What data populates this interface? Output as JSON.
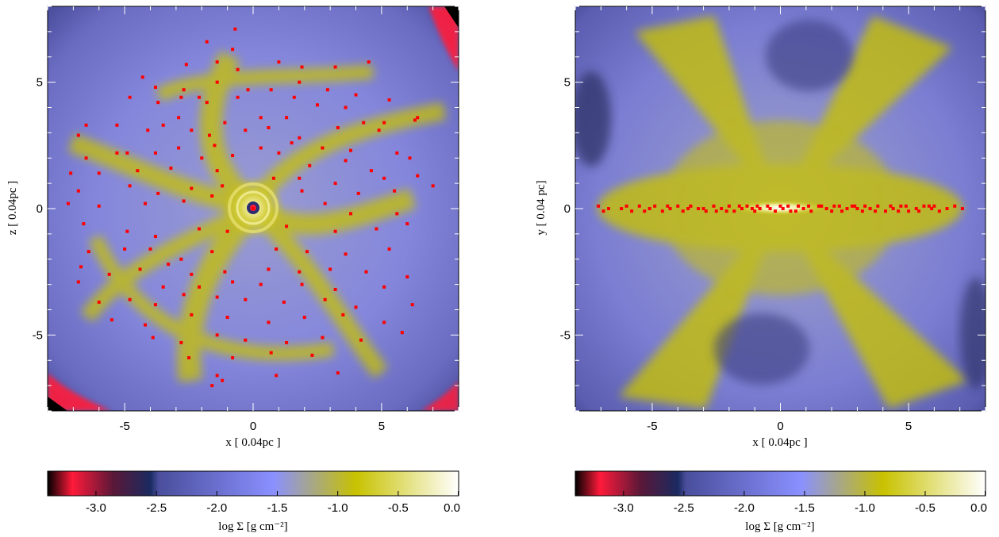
{
  "chart_data": [
    {
      "type": "heatmap",
      "panel": "left",
      "xlabel": "x [ 0.04pc ]",
      "ylabel": "z [ 0.04pc ]",
      "xlim": [
        -8,
        8
      ],
      "ylim": [
        -8,
        8
      ],
      "x_ticks": [
        "-5",
        "0",
        "5"
      ],
      "y_ticks": [
        "-5",
        "0",
        "5"
      ],
      "x_tick_values": [
        -5,
        0,
        5
      ],
      "y_tick_values": [
        -5,
        0,
        5
      ],
      "colorbar": {
        "label": "log Σ [g cm⁻²]",
        "range": [
          -3.4,
          0.0
        ],
        "ticks": [
          "-3.0",
          "-2.5",
          "-2.0",
          "-1.5",
          "-1.0",
          "-0.5",
          "0.0"
        ],
        "tick_values": [
          -3.0,
          -2.5,
          -2.0,
          -1.5,
          -1.0,
          -0.5,
          0.0
        ]
      },
      "colormap": [
        "#000000",
        "#ff1a3a",
        "#1a2a60",
        "#5a5fb0",
        "#8a90ff",
        "#c8c200",
        "#ffffff"
      ],
      "marker_color": "#ff0000",
      "points": [
        [
          0,
          0
        ],
        [
          -1.8,
          6.6
        ],
        [
          -0.7,
          7.1
        ],
        [
          -0.8,
          6.3
        ],
        [
          -1.4,
          5.8
        ],
        [
          -2.6,
          5.7
        ],
        [
          -0.6,
          5.5
        ],
        [
          -4.3,
          5.2
        ],
        [
          1.0,
          5.8
        ],
        [
          1.9,
          5.6
        ],
        [
          3.2,
          5.6
        ],
        [
          4.5,
          5.8
        ],
        [
          1.8,
          5.0
        ],
        [
          -3.8,
          4.8
        ],
        [
          -2.7,
          4.7
        ],
        [
          -2.1,
          4.4
        ],
        [
          -0.2,
          4.7
        ],
        [
          -1.4,
          5.0
        ],
        [
          0.7,
          4.7
        ],
        [
          -4.8,
          4.4
        ],
        [
          -3.7,
          4.2
        ],
        [
          -2.8,
          4.4
        ],
        [
          -1.8,
          4.2
        ],
        [
          -0.6,
          4.4
        ],
        [
          1.6,
          4.4
        ],
        [
          2.9,
          4.7
        ],
        [
          4.0,
          4.5
        ],
        [
          5.3,
          4.3
        ],
        [
          -2.9,
          3.6
        ],
        [
          -1.1,
          3.4
        ],
        [
          0.3,
          3.6
        ],
        [
          1.3,
          3.6
        ],
        [
          2.5,
          4.1
        ],
        [
          3.6,
          4.0
        ],
        [
          4.3,
          3.4
        ],
        [
          5.1,
          3.4
        ],
        [
          6.3,
          3.5
        ],
        [
          -6.5,
          3.3
        ],
        [
          -5.3,
          3.3
        ],
        [
          -4.1,
          3.1
        ],
        [
          -3.5,
          3.3
        ],
        [
          -2.4,
          3.1
        ],
        [
          -1.7,
          2.9
        ],
        [
          -0.3,
          3.1
        ],
        [
          0.6,
          3.2
        ],
        [
          1.8,
          2.8
        ],
        [
          3.3,
          3.2
        ],
        [
          4.9,
          3.1
        ],
        [
          6.4,
          3.6
        ],
        [
          -6.8,
          2.9
        ],
        [
          -4.9,
          2.2
        ],
        [
          -2.9,
          2.4
        ],
        [
          -1.5,
          2.5
        ],
        [
          0.3,
          2.4
        ],
        [
          1.5,
          2.6
        ],
        [
          2.7,
          2.4
        ],
        [
          3.8,
          2.3
        ],
        [
          5.6,
          2.2
        ],
        [
          -6.5,
          2.0
        ],
        [
          -5.3,
          2.2
        ],
        [
          -3.8,
          2.2
        ],
        [
          -2.0,
          2.0
        ],
        [
          -0.8,
          2.1
        ],
        [
          1.0,
          2.2
        ],
        [
          2.2,
          1.7
        ],
        [
          3.6,
          1.9
        ],
        [
          4.6,
          1.5
        ],
        [
          6.1,
          2.0
        ],
        [
          -7.1,
          1.4
        ],
        [
          -6.0,
          1.4
        ],
        [
          -4.5,
          1.5
        ],
        [
          -3.2,
          1.6
        ],
        [
          -1.4,
          1.5
        ],
        [
          0.8,
          1.2
        ],
        [
          1.8,
          1.2
        ],
        [
          3.2,
          1.0
        ],
        [
          5.1,
          1.2
        ],
        [
          6.4,
          1.3
        ],
        [
          -6.8,
          0.7
        ],
        [
          -4.8,
          0.9
        ],
        [
          -3.7,
          0.6
        ],
        [
          -2.4,
          0.8
        ],
        [
          -1.2,
          0.9
        ],
        [
          1.9,
          0.7
        ],
        [
          4.1,
          0.6
        ],
        [
          5.5,
          0.7
        ],
        [
          7.0,
          0.9
        ],
        [
          -7.2,
          0.2
        ],
        [
          -6.0,
          0.1
        ],
        [
          -4.2,
          0.2
        ],
        [
          -2.7,
          0.3
        ],
        [
          -1.6,
          0.5
        ],
        [
          2.8,
          0.2
        ],
        [
          3.8,
          -0.2
        ],
        [
          5.6,
          -0.2
        ],
        [
          -6.6,
          -0.6
        ],
        [
          -4.9,
          -0.9
        ],
        [
          -3.8,
          -1.1
        ],
        [
          -2.1,
          -0.8
        ],
        [
          -1.0,
          -0.9
        ],
        [
          1.3,
          -0.7
        ],
        [
          3.2,
          -0.9
        ],
        [
          4.8,
          -0.8
        ],
        [
          6.0,
          -0.6
        ],
        [
          -6.4,
          -1.7
        ],
        [
          -5.0,
          -1.6
        ],
        [
          -4.0,
          -1.6
        ],
        [
          -2.8,
          -2.0
        ],
        [
          -1.6,
          -1.7
        ],
        [
          0.9,
          -1.6
        ],
        [
          2.1,
          -1.7
        ],
        [
          3.6,
          -1.8
        ],
        [
          5.3,
          -1.6
        ],
        [
          -6.7,
          -2.3
        ],
        [
          -5.6,
          -2.6
        ],
        [
          -4.4,
          -2.4
        ],
        [
          -3.3,
          -2.2
        ],
        [
          -2.4,
          -2.6
        ],
        [
          -1.1,
          -2.5
        ],
        [
          0.6,
          -2.4
        ],
        [
          1.8,
          -2.5
        ],
        [
          3.0,
          -2.4
        ],
        [
          4.4,
          -2.5
        ],
        [
          6.0,
          -2.7
        ],
        [
          -6.8,
          -2.9
        ],
        [
          -3.5,
          -3.1
        ],
        [
          -2.1,
          -3.1
        ],
        [
          -0.8,
          -2.9
        ],
        [
          0.3,
          -3.0
        ],
        [
          1.9,
          -3.0
        ],
        [
          3.2,
          -3.2
        ],
        [
          5.1,
          -3.1
        ],
        [
          -6.0,
          -3.7
        ],
        [
          -4.8,
          -3.6
        ],
        [
          -3.8,
          -3.8
        ],
        [
          -2.7,
          -3.4
        ],
        [
          -1.4,
          -3.5
        ],
        [
          -0.3,
          -3.6
        ],
        [
          1.2,
          -3.7
        ],
        [
          2.8,
          -3.6
        ],
        [
          4.0,
          -3.9
        ],
        [
          6.2,
          -3.8
        ],
        [
          -5.5,
          -4.4
        ],
        [
          -4.2,
          -4.6
        ],
        [
          -2.4,
          -4.2
        ],
        [
          -1.0,
          -4.3
        ],
        [
          0.6,
          -4.5
        ],
        [
          2.0,
          -4.3
        ],
        [
          3.5,
          -4.2
        ],
        [
          5.1,
          -4.5
        ],
        [
          -3.9,
          -5.1
        ],
        [
          -2.8,
          -5.3
        ],
        [
          -1.4,
          -5.0
        ],
        [
          -0.3,
          -5.2
        ],
        [
          1.3,
          -5.3
        ],
        [
          2.7,
          -5.1
        ],
        [
          4.2,
          -5.2
        ],
        [
          5.8,
          -4.9
        ],
        [
          -2.5,
          -5.9
        ],
        [
          -0.8,
          -5.9
        ],
        [
          0.7,
          -5.7
        ],
        [
          2.3,
          -5.8
        ],
        [
          -1.4,
          -6.6
        ],
        [
          0.9,
          -6.6
        ],
        [
          3.3,
          -6.5
        ],
        [
          -1.6,
          -7.0
        ],
        [
          -1.2,
          -6.8
        ]
      ]
    },
    {
      "type": "heatmap",
      "panel": "right",
      "xlabel": "x [ 0.04pc ]",
      "ylabel": "y [ 0.04 pc]",
      "xlim": [
        -8,
        8
      ],
      "ylim": [
        -8,
        8
      ],
      "x_ticks": [
        "-5",
        "0",
        "5"
      ],
      "y_ticks": [
        "-5",
        "0",
        "5"
      ],
      "x_tick_values": [
        -5,
        0,
        5
      ],
      "y_tick_values": [
        -5,
        0,
        5
      ],
      "colorbar": {
        "label": "log Σ [g cm⁻²]",
        "range": [
          -3.4,
          0.0
        ],
        "ticks": [
          "-3.0",
          "-2.5",
          "-2.0",
          "-1.5",
          "-1.0",
          "-0.5",
          "0.0"
        ],
        "tick_values": [
          -3.0,
          -2.5,
          -2.0,
          -1.5,
          -1.0,
          -0.5,
          0.0
        ]
      },
      "colormap": [
        "#000000",
        "#ff1a3a",
        "#1a2a60",
        "#5a5fb0",
        "#8a90ff",
        "#c8c200",
        "#ffffff"
      ],
      "marker_color": "#ff0000",
      "points": [
        [
          -7.1,
          0.1
        ],
        [
          -6.9,
          -0.1
        ],
        [
          -6.7,
          0.0
        ],
        [
          -6.0,
          0.1
        ],
        [
          -5.8,
          -0.1
        ],
        [
          -5.5,
          0.1
        ],
        [
          -5.1,
          0.0
        ],
        [
          -4.9,
          0.1
        ],
        [
          -4.6,
          -0.1
        ],
        [
          -4.3,
          0.0
        ],
        [
          -4.0,
          0.1
        ],
        [
          -3.8,
          -0.1
        ],
        [
          -3.5,
          0.1
        ],
        [
          -3.2,
          0.0
        ],
        [
          -2.9,
          -0.1
        ],
        [
          -2.6,
          0.1
        ],
        [
          -2.3,
          0.0
        ],
        [
          -2.0,
          0.1
        ],
        [
          -1.8,
          -0.1
        ],
        [
          -1.5,
          0.0
        ],
        [
          -1.3,
          0.1
        ],
        [
          -1.0,
          -0.1
        ],
        [
          -0.8,
          0.0
        ],
        [
          -0.5,
          0.1
        ],
        [
          -0.2,
          -0.1
        ],
        [
          0.1,
          0.0
        ],
        [
          0.4,
          -0.1
        ],
        [
          0.7,
          0.1
        ],
        [
          0.9,
          0.0
        ],
        [
          1.2,
          -0.1
        ],
        [
          1.5,
          0.1
        ],
        [
          1.8,
          0.0
        ],
        [
          2.1,
          0.1
        ],
        [
          2.4,
          -0.1
        ],
        [
          2.6,
          0.0
        ],
        [
          2.9,
          0.1
        ],
        [
          3.2,
          -0.1
        ],
        [
          3.5,
          0.0
        ],
        [
          3.8,
          0.1
        ],
        [
          4.1,
          -0.1
        ],
        [
          4.4,
          0.0
        ],
        [
          4.7,
          0.1
        ],
        [
          5.0,
          -0.1
        ],
        [
          5.3,
          0.0
        ],
        [
          5.6,
          0.1
        ],
        [
          5.9,
          0.0
        ],
        [
          6.2,
          -0.1
        ],
        [
          6.5,
          0.0
        ],
        [
          6.8,
          0.1
        ],
        [
          7.1,
          0.0
        ],
        [
          -6.2,
          0.0
        ],
        [
          -5.3,
          -0.1
        ],
        [
          -4.4,
          0.1
        ],
        [
          -3.0,
          0.0
        ],
        [
          -1.6,
          0.1
        ],
        [
          -0.9,
          0.1
        ],
        [
          0.3,
          0.1
        ],
        [
          1.1,
          0.1
        ],
        [
          2.0,
          -0.1
        ],
        [
          3.0,
          0.0
        ],
        [
          4.3,
          0.1
        ],
        [
          5.4,
          -0.1
        ],
        [
          6.0,
          0.1
        ],
        [
          1.6,
          0.1
        ],
        [
          2.8,
          0.1
        ],
        [
          -2.1,
          -0.1
        ],
        [
          -0.4,
          0.0
        ],
        [
          0.6,
          -0.1
        ],
        [
          3.7,
          -0.1
        ],
        [
          4.9,
          0.1
        ],
        [
          -3.6,
          0.0
        ],
        [
          -2.5,
          -0.1
        ],
        [
          -1.1,
          0.0
        ],
        [
          0.0,
          0.1
        ],
        [
          2.3,
          0.1
        ],
        [
          3.3,
          0.1
        ],
        [
          4.6,
          -0.1
        ],
        [
          5.8,
          0.1
        ]
      ]
    }
  ]
}
